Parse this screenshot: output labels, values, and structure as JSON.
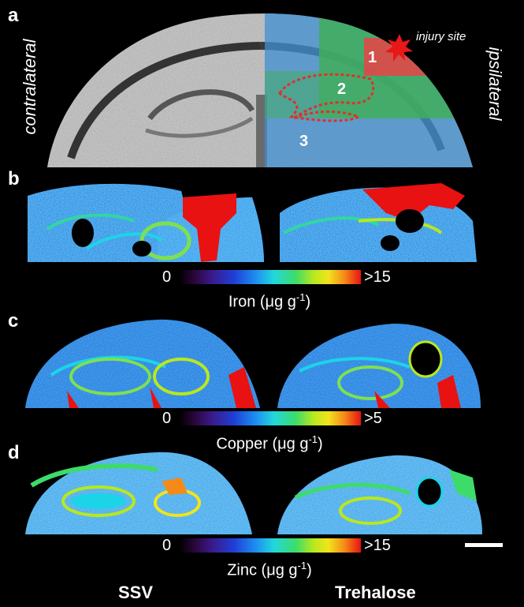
{
  "panels": {
    "a": "a",
    "b": "b",
    "c": "c",
    "d": "d"
  },
  "panel_a": {
    "left_side": "contralateral",
    "right_side": "ipsilateral",
    "injury_label": "injury site",
    "regions": [
      "1",
      "2",
      "3"
    ],
    "region_colors": {
      "1": "#e04848",
      "2": "#3fae5a",
      "3": "#3f8fd0",
      "outline": "#e0302c"
    }
  },
  "colorbars": {
    "iron": {
      "min": "0",
      "max": ">15",
      "title": "Iron (μg g",
      "exp": "-1",
      "close": ")"
    },
    "copper": {
      "min": "0",
      "max": ">5",
      "title": "Copper (μg g",
      "exp": "-1",
      "close": ")"
    },
    "zinc": {
      "min": "0",
      "max": ">15",
      "title": "Zinc (μg g",
      "exp": "-1",
      "close": ")"
    }
  },
  "columns": {
    "left": "SSV",
    "right": "Trehalose"
  }
}
